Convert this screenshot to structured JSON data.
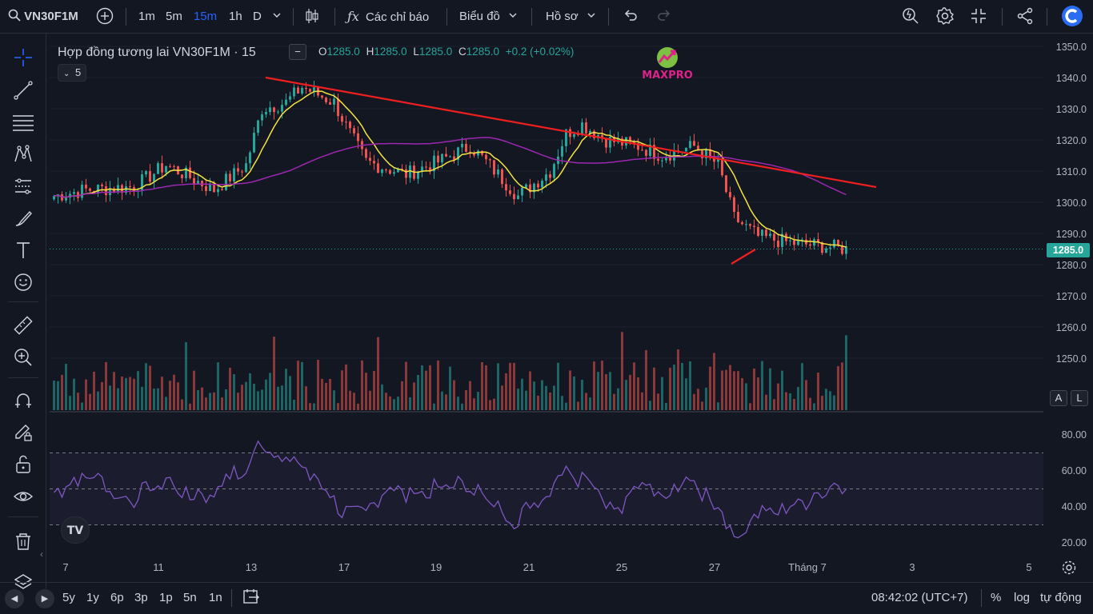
{
  "topbar": {
    "symbol": "VN30F1M",
    "intervals": [
      "1m",
      "5m",
      "15m",
      "1h",
      "D"
    ],
    "active_interval": "15m",
    "indicators_label": "Các chỉ báo",
    "chart_label": "Biểu đồ",
    "profile_label": "Hồ sơ"
  },
  "legend": {
    "title": "Hợp đồng tương lai VN30F1M · 15",
    "open_key": "O",
    "open": "1285.0",
    "high_key": "H",
    "high": "1285.0",
    "low_key": "L",
    "low": "1285.0",
    "close_key": "C",
    "close": "1285.0",
    "change": "+0.2 (+0.02%)",
    "collapse_count": "5"
  },
  "watermark": {
    "text": "MAXPRO"
  },
  "price_axis": {
    "labels": [
      "1350.0",
      "1340.0",
      "1330.0",
      "1320.0",
      "1310.0",
      "1300.0",
      "1290.0",
      "1280.0",
      "1270.0",
      "1260.0",
      "1250.0"
    ],
    "last_price": "1285.0",
    "auto_label": "A",
    "log_label": "L"
  },
  "rsi_axis": {
    "labels": [
      "80.00",
      "60.00",
      "40.00",
      "20.00"
    ]
  },
  "time_axis": {
    "labels": [
      "7",
      "11",
      "13",
      "17",
      "19",
      "21",
      "25",
      "27",
      "Tháng 7",
      "3",
      "5"
    ]
  },
  "bottombar": {
    "ranges": [
      "5y",
      "1y",
      "6p",
      "3p",
      "1p",
      "5n",
      "1n"
    ],
    "clock": "08:42:02 (UTC+7)",
    "percent_label": "%",
    "log_label": "log",
    "auto_label": "tự động"
  },
  "colors": {
    "up": "#26a69a",
    "down": "#ef5350",
    "ma_fast": "#f5e342",
    "ma_slow": "#9c27b0",
    "trendline": "#f01f1f",
    "rsi": "#7e57c2",
    "accent": "#2962ff"
  }
}
